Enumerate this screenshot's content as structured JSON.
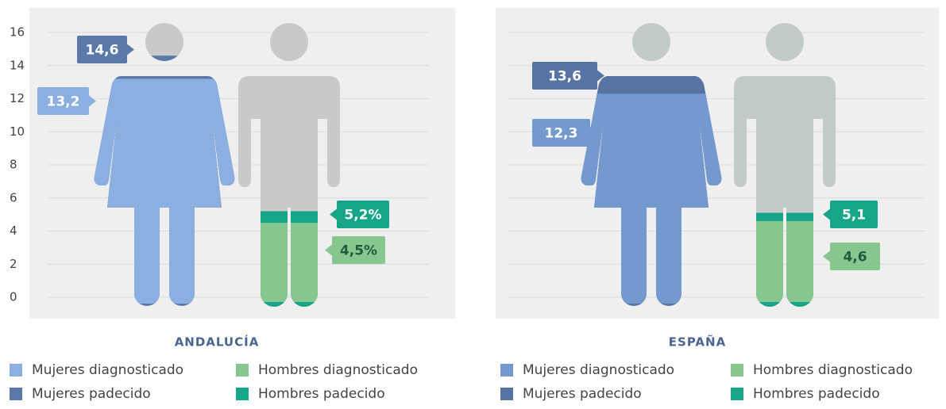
{
  "chart_data": [
    {
      "type": "pictogram",
      "title": "ANDALUCÍA",
      "ylim": [
        0,
        16
      ],
      "yticks": [
        0,
        2,
        4,
        6,
        8,
        10,
        12,
        14,
        16
      ],
      "grid": true,
      "show_yticks": true,
      "series": [
        {
          "name": "Mujeres diagnosticado",
          "color": "#8aafe0",
          "values": [
            13.2
          ],
          "value_labels": [
            "13,2"
          ]
        },
        {
          "name": "Mujeres padecido",
          "color": "#5a79a8",
          "values": [
            14.6
          ],
          "value_labels": [
            "14,6"
          ]
        },
        {
          "name": "Hombres diagnosticado",
          "color": "#88c690",
          "values": [
            4.5
          ],
          "value_labels": [
            "4,5%"
          ]
        },
        {
          "name": "Hombres padecido",
          "color": "#17a589",
          "values": [
            5.2
          ],
          "value_labels": [
            "5,2%"
          ]
        }
      ]
    },
    {
      "type": "pictogram",
      "title": "ESPAÑA",
      "ylim": [
        0,
        16
      ],
      "yticks": [
        0,
        2,
        4,
        6,
        8,
        10,
        12,
        14,
        16
      ],
      "grid": true,
      "show_yticks": false,
      "series": [
        {
          "name": "Mujeres diagnosticado",
          "color": "#7399cf",
          "values": [
            12.3
          ],
          "value_labels": [
            "12,3"
          ]
        },
        {
          "name": "Mujeres padecido",
          "color": "#5874a4",
          "values": [
            13.6
          ],
          "value_labels": [
            "13,6"
          ]
        },
        {
          "name": "Hombres diagnosticado",
          "color": "#88c690",
          "values": [
            4.6
          ],
          "value_labels": [
            "4,6"
          ]
        },
        {
          "name": "Hombres padecido",
          "color": "#17a589",
          "values": [
            5.1
          ],
          "value_labels": [
            "5,1"
          ]
        }
      ]
    }
  ]
}
